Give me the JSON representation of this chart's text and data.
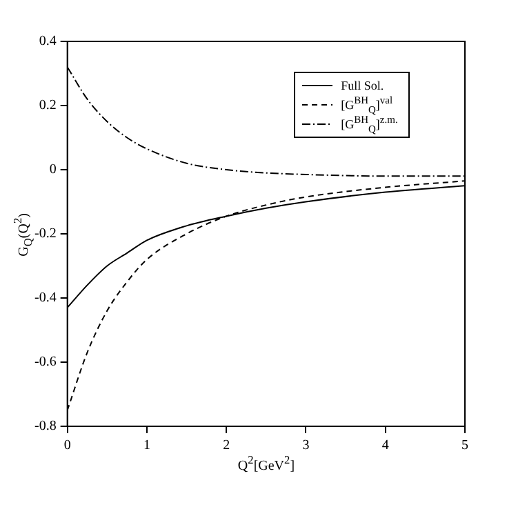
{
  "chart_data": {
    "type": "line",
    "xlabel": "Q$^{2}$[GeV$^{2}$]",
    "ylabel": "G$_{Q}$(Q$^{2}$)",
    "xlim": [
      0,
      5
    ],
    "ylim": [
      -0.8,
      0.4
    ],
    "xticks": [
      0,
      1,
      2,
      3,
      4,
      5
    ],
    "yticks": [
      -0.8,
      -0.6,
      -0.4,
      -0.2,
      0,
      0.2,
      0.4
    ],
    "grid": false,
    "legend": "top right",
    "marker": "none",
    "x": [
      0,
      0.25,
      0.5,
      0.75,
      1,
      1.5,
      2,
      2.5,
      3,
      4,
      5
    ],
    "series": [
      {
        "name": "Full Sol.",
        "color": "#000000",
        "line_style": "solid",
        "values": [
          -0.43,
          -0.36,
          -0.3,
          -0.26,
          -0.22,
          -0.175,
          -0.145,
          -0.12,
          -0.1,
          -0.07,
          -0.05
        ]
      },
      {
        "name": "[G$^{BH}$$_{Q}$]$^{val}$",
        "color": "#000000",
        "line_style": "dashed",
        "values": [
          -0.75,
          -0.57,
          -0.44,
          -0.35,
          -0.28,
          -0.2,
          -0.145,
          -0.11,
          -0.085,
          -0.055,
          -0.035
        ]
      },
      {
        "name": "[G$^{BH}$$_{Q}$]$^{z.m.}$",
        "color": "#000000",
        "line_style": "dashdot",
        "values": [
          0.32,
          0.22,
          0.15,
          0.1,
          0.065,
          0.02,
          0,
          -0.01,
          -0.015,
          -0.02,
          -0.02
        ]
      }
    ]
  }
}
